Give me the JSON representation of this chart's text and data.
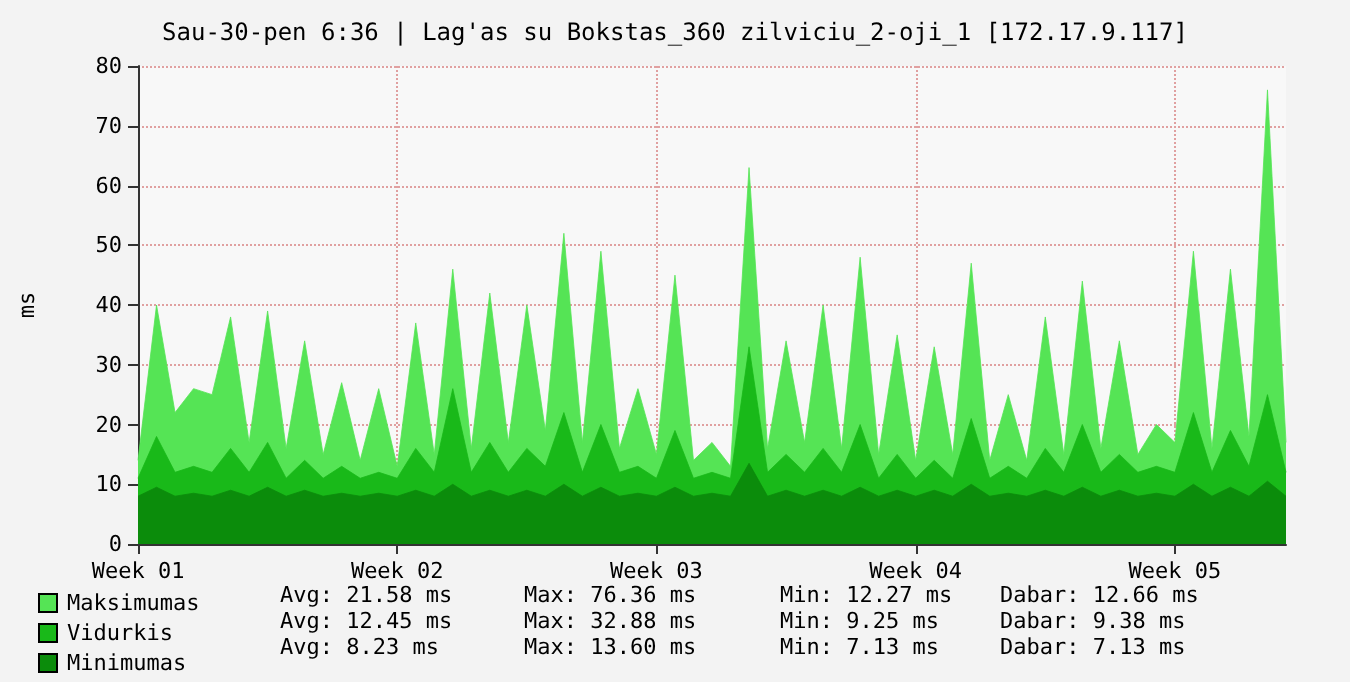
{
  "chart_data": {
    "type": "area",
    "title": "Sau-30-pen 6:36 | Lag'as su Bokstas_360 zilviciu_2-oji_1 [172.17.9.117]",
    "ylabel": "ms",
    "categories": [
      "Week 01",
      null,
      null,
      null,
      null,
      null,
      null,
      null,
      null,
      null,
      null,
      null,
      null,
      null,
      "Week 02",
      null,
      null,
      null,
      null,
      null,
      null,
      null,
      null,
      null,
      null,
      null,
      null,
      null,
      "Week 03",
      null,
      null,
      null,
      null,
      null,
      null,
      null,
      null,
      null,
      null,
      null,
      null,
      null,
      "Week 04",
      null,
      null,
      null,
      null,
      null,
      null,
      null,
      null,
      null,
      null,
      null,
      null,
      null,
      "Week 05",
      null,
      null,
      null,
      null,
      null,
      null
    ],
    "ylim": [
      0,
      80
    ],
    "yticks": [
      0,
      10,
      20,
      30,
      40,
      50,
      60,
      70,
      80
    ],
    "series": [
      {
        "name": "Maksimumas",
        "color": "#55e455",
        "values": [
          14,
          40,
          22,
          26,
          25,
          38,
          17,
          39,
          16,
          34,
          15,
          27,
          14,
          26,
          13,
          37,
          15,
          46,
          16,
          42,
          17,
          40,
          19,
          52,
          17,
          49,
          16,
          26,
          15,
          45,
          14,
          17,
          13,
          63,
          16,
          34,
          17,
          40,
          16,
          48,
          15,
          35,
          14,
          33,
          15,
          47,
          14,
          25,
          14,
          38,
          15,
          44,
          16,
          34,
          15,
          20,
          17,
          49,
          16,
          46,
          18,
          76,
          17
        ]
      },
      {
        "name": "Vidurkis",
        "color": "#19b919",
        "values": [
          11,
          18,
          12,
          13,
          12,
          16,
          12,
          17,
          11,
          14,
          11,
          13,
          11,
          12,
          11,
          16,
          12,
          26,
          12,
          17,
          12,
          16,
          13,
          22,
          12,
          20,
          12,
          13,
          11,
          19,
          11,
          12,
          11,
          33,
          12,
          15,
          12,
          16,
          12,
          20,
          11,
          15,
          11,
          14,
          11,
          21,
          11,
          13,
          11,
          16,
          12,
          20,
          12,
          15,
          12,
          13,
          12,
          22,
          12,
          19,
          13,
          25,
          12
        ]
      },
      {
        "name": "Minimumas",
        "color": "#0b8c0b",
        "values": [
          8,
          9.5,
          8,
          8.5,
          8,
          9,
          8,
          9.5,
          8,
          9,
          8,
          8.5,
          8,
          8.5,
          8,
          9,
          8,
          10,
          8,
          9,
          8,
          9,
          8,
          10,
          8,
          9.5,
          8,
          8.5,
          8,
          9.5,
          8,
          8.5,
          8,
          13.5,
          8,
          9,
          8,
          9,
          8,
          9.5,
          8,
          9,
          8,
          9,
          8,
          10,
          8,
          8.5,
          8,
          9,
          8,
          9.5,
          8,
          9,
          8,
          8.5,
          8,
          10,
          8,
          9.5,
          8,
          10.5,
          8
        ]
      }
    ],
    "annotations": [
      "Avg: 21.58 ms",
      "Max: 76.36 ms",
      "Min: 12.27 ms",
      "Dabar: 12.66 ms",
      "Avg: 12.45 ms",
      "Max: 32.88 ms",
      "Min: 9.25 ms",
      "Dabar: 9.38 ms",
      "Avg: 8.23 ms",
      "Max: 13.60 ms",
      "Min: 7.13 ms",
      "Dabar: 7.13 ms"
    ],
    "grid": true,
    "legend": "bottom",
    "marker": "none"
  }
}
